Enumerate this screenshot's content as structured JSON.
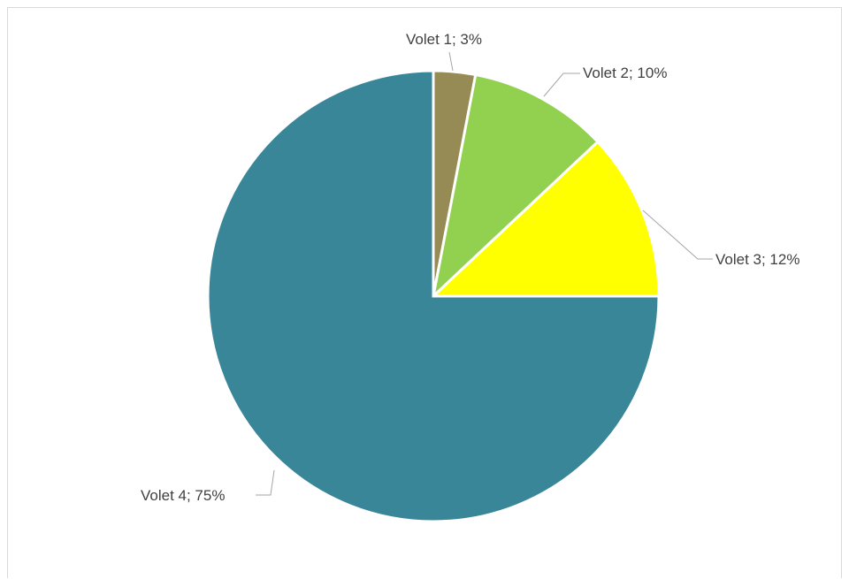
{
  "chart_data": {
    "type": "pie",
    "title": "",
    "categories": [
      "Volet 1",
      "Volet 2",
      "Volet 3",
      "Volet 4"
    ],
    "values": [
      3,
      10,
      12,
      75
    ],
    "unit": "%",
    "colors": [
      "#968b55",
      "#92d050",
      "#ffff00",
      "#3a8699"
    ],
    "start_angle_deg": 0,
    "direction": "clockwise",
    "labels": [
      {
        "text": "Volet 1; 3%"
      },
      {
        "text": "Volet 2; 10%"
      },
      {
        "text": "Volet 3; 12%"
      },
      {
        "text": "Volet 4; 75%"
      }
    ],
    "legend": "none",
    "grid": false
  }
}
